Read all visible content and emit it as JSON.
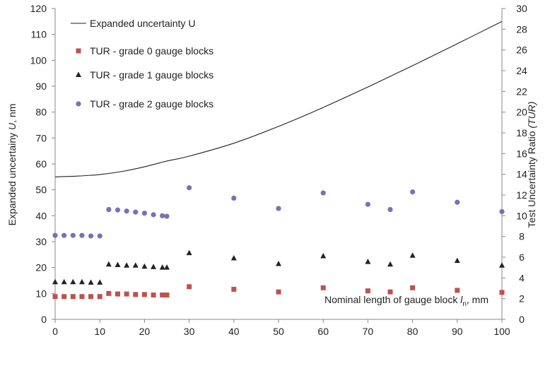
{
  "chart_data": {
    "type": "scatter",
    "title": "",
    "xlabel_prefix": "Nominal length of gauge block ",
    "xlabel_sym": "l",
    "xlabel_sub": "n",
    "xlabel_suffix": ", mm",
    "ylabel_prefix": "Expanded uncertainy ",
    "ylabel_sym": "U",
    "ylabel_suffix": ", nm",
    "y2label_prefix": "Test Uncertainty Ratio ",
    "y2label_sym": "(TUR)",
    "xlim": [
      0,
      100
    ],
    "ylim": [
      0,
      120
    ],
    "y2lim": [
      0,
      30
    ],
    "xticks": [
      "0",
      "10",
      "20",
      "30",
      "40",
      "50",
      "60",
      "70",
      "80",
      "90",
      "100"
    ],
    "yticks": [
      "0",
      "10",
      "20",
      "30",
      "40",
      "50",
      "60",
      "70",
      "80",
      "90",
      "100",
      "110",
      "120"
    ],
    "y2ticks": [
      "0",
      "2",
      "4",
      "6",
      "8",
      "10",
      "12",
      "14",
      "16",
      "18",
      "20",
      "22",
      "24",
      "26",
      "28",
      "30"
    ],
    "grid": false,
    "legend_position": "top-left",
    "series": [
      {
        "name": "Expanded uncertainty U",
        "kind": "line",
        "axis": "left",
        "color": "#222222",
        "x": [
          0,
          5,
          10,
          15,
          20,
          25,
          30,
          40,
          50,
          60,
          70,
          80,
          90,
          100
        ],
        "y": [
          55,
          55.3,
          55.9,
          57.1,
          58.9,
          61.1,
          63.0,
          68.0,
          74.5,
          81.8,
          89.7,
          97.9,
          106.4,
          115.0
        ]
      },
      {
        "name": "TUR - grade 0 gauge blocks",
        "kind": "scatter",
        "marker": "square",
        "axis": "right",
        "color": "#c0504d",
        "x": [
          0,
          2,
          4,
          6,
          8,
          10,
          12,
          14,
          16,
          18,
          20,
          22,
          24,
          25,
          30,
          40,
          50,
          60,
          70,
          75,
          80,
          90,
          100
        ],
        "y": [
          2.2,
          2.2,
          2.2,
          2.2,
          2.2,
          2.2,
          2.5,
          2.45,
          2.45,
          2.4,
          2.4,
          2.35,
          2.35,
          2.35,
          3.15,
          2.9,
          2.65,
          3.05,
          2.75,
          2.65,
          3.05,
          2.8,
          2.6
        ]
      },
      {
        "name": "TUR - grade 1 gauge blocks",
        "kind": "scatter",
        "marker": "triangle",
        "axis": "right",
        "color": "#222222",
        "x": [
          0,
          2,
          4,
          6,
          8,
          10,
          12,
          14,
          16,
          18,
          20,
          22,
          24,
          25,
          30,
          40,
          50,
          60,
          70,
          75,
          80,
          90,
          100
        ],
        "y": [
          3.6,
          3.6,
          3.6,
          3.6,
          3.55,
          3.55,
          5.3,
          5.25,
          5.2,
          5.2,
          5.1,
          5.05,
          5.0,
          5.0,
          6.4,
          5.9,
          5.35,
          6.1,
          5.55,
          5.3,
          6.15,
          5.65,
          5.2
        ]
      },
      {
        "name": "TUR - grade 2 gauge blocks",
        "kind": "scatter",
        "marker": "circle",
        "axis": "right",
        "color": "#7b6fb5",
        "x": [
          0,
          2,
          4,
          6,
          8,
          10,
          12,
          14,
          16,
          18,
          20,
          22,
          24,
          25,
          30,
          40,
          50,
          60,
          70,
          75,
          80,
          90,
          100
        ],
        "y": [
          8.1,
          8.1,
          8.1,
          8.1,
          8.05,
          8.05,
          10.6,
          10.55,
          10.45,
          10.35,
          10.25,
          10.1,
          10.0,
          9.95,
          12.7,
          11.7,
          10.7,
          12.2,
          11.1,
          10.6,
          12.3,
          11.3,
          10.4
        ]
      }
    ]
  }
}
